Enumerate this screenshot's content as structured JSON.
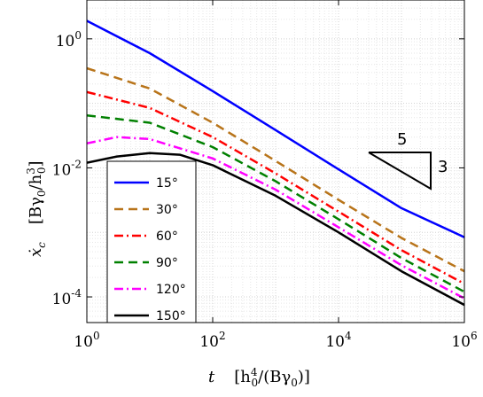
{
  "chart_data": {
    "type": "line",
    "xscale": "log",
    "yscale": "log",
    "xlim": [
      1,
      1000000
    ],
    "ylim": [
      4e-05,
      4
    ],
    "x_ticks": [
      1,
      100,
      10000,
      1000000
    ],
    "x_tick_labels": [
      "10^0",
      "10^2",
      "10^4",
      "10^6"
    ],
    "y_ticks": [
      0.0001,
      0.01,
      1
    ],
    "y_tick_labels": [
      "10^-4",
      "10^-2",
      "10^0"
    ],
    "grid": true,
    "xlabel": "t   [h_0^4/(Bγ_0)]",
    "ylabel": "ẋ_c   [Bγ_0/h_0^3]",
    "legend_position": "lower-left",
    "series": [
      {
        "name": "15°",
        "color": "#0000ff",
        "dash": "solid",
        "x": [
          1,
          10,
          100,
          1000,
          10000,
          100000,
          1000000
        ],
        "y": [
          1.9,
          0.6,
          0.155,
          0.0385,
          0.0095,
          0.00237,
          0.00084
        ]
      },
      {
        "name": "30°",
        "color": "#b8741a",
        "dash": "dashed",
        "x": [
          1,
          10,
          100,
          1000,
          10000,
          100000,
          1000000
        ],
        "y": [
          0.35,
          0.17,
          0.05,
          0.0128,
          0.0032,
          0.00082,
          0.00025
        ]
      },
      {
        "name": "60°",
        "color": "#ff0000",
        "dash": "dashdot",
        "x": [
          1,
          10,
          100,
          1000,
          10000,
          100000,
          1000000
        ],
        "y": [
          0.15,
          0.085,
          0.03,
          0.0082,
          0.0021,
          0.00053,
          0.00016
        ]
      },
      {
        "name": "90°",
        "color": "#008000",
        "dash": "dashed",
        "x": [
          1,
          10,
          100,
          1000,
          10000,
          100000,
          1000000
        ],
        "y": [
          0.065,
          0.05,
          0.021,
          0.0062,
          0.0016,
          0.0004,
          0.00012
        ]
      },
      {
        "name": "120°",
        "color": "#ff00ff",
        "dash": "dashdot",
        "x": [
          1,
          3,
          10,
          100,
          1000,
          10000,
          100000,
          1000000
        ],
        "y": [
          0.024,
          0.03,
          0.028,
          0.014,
          0.0046,
          0.0012,
          0.00031,
          9.5e-05
        ]
      },
      {
        "name": "150°",
        "color": "#000000",
        "dash": "solid",
        "x": [
          1,
          3,
          10,
          30,
          100,
          1000,
          10000,
          100000,
          1000000
        ],
        "y": [
          0.012,
          0.015,
          0.017,
          0.016,
          0.011,
          0.0037,
          0.001,
          0.00025,
          7.5e-05
        ]
      }
    ],
    "annotations": {
      "slope_run": "5",
      "slope_rise": "3"
    }
  }
}
